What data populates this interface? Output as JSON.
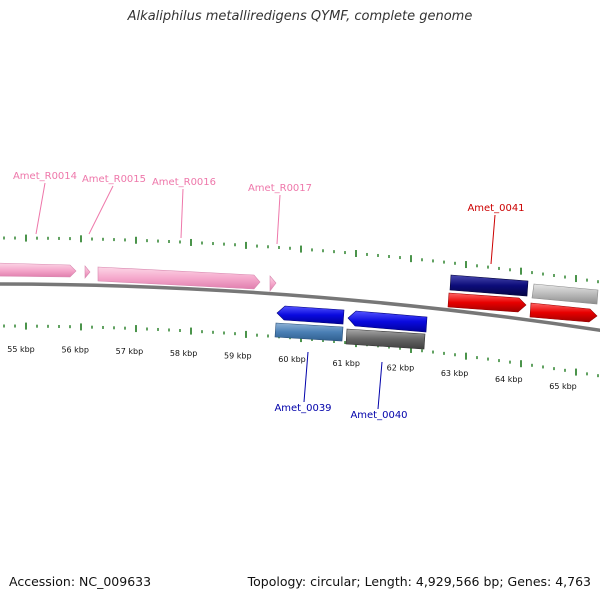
{
  "title": "Alkaliphilus metalliredigens QYMF, complete genome",
  "footer": {
    "accession": "Accession: NC_009633",
    "summary": "Topology: circular; Length: 4,929,566 bp; Genes: 4,763"
  },
  "colors": {
    "rrna_label": "#ee77aa",
    "rrna_feature": "#f5a9cc",
    "cds_reverse_a": "#0a0adf",
    "cds_reverse_b": "#4a7fb5",
    "cds_reverse_c": "#666666",
    "cds_forward_a": "#0c0c7a",
    "cds_forward_b": "#e80000",
    "cds_forward_c": "#aaaaaa",
    "ticks": "#1e7a1e",
    "backbone": "#777777",
    "label_forward": "#cc0000",
    "label_reverse": "#0000aa"
  },
  "scale": {
    "unit": "kbp",
    "tick_labels": [
      "55 kbp",
      "56 kbp",
      "57 kbp",
      "58 kbp",
      "59 kbp",
      "60 kbp",
      "61 kbp",
      "62 kbp",
      "63 kbp",
      "64 kbp",
      "65 kbp"
    ]
  },
  "features": [
    {
      "label": "Amet_R0014",
      "type": "rRNA",
      "strand": "forward"
    },
    {
      "label": "Amet_R0015",
      "type": "rRNA",
      "strand": "forward"
    },
    {
      "label": "Amet_R0016",
      "type": "rRNA",
      "strand": "forward"
    },
    {
      "label": "Amet_R0017",
      "type": "rRNA",
      "strand": "forward"
    },
    {
      "label": "Amet_0041",
      "type": "CDS",
      "strand": "forward"
    },
    {
      "label": "Amet_0039",
      "type": "CDS",
      "strand": "reverse"
    },
    {
      "label": "Amet_0040",
      "type": "CDS",
      "strand": "reverse"
    }
  ]
}
